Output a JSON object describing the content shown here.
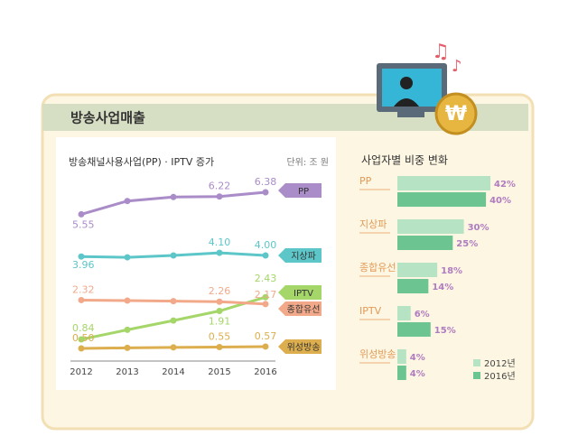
{
  "header": {
    "title": "방송사업매출"
  },
  "chart_data": [
    {
      "type": "line",
      "title": "방송채널사용사업(PP) · IPTV 증가",
      "unit": "단위: 조 원",
      "x": [
        2012,
        2013,
        2014,
        2015,
        2016
      ],
      "series": [
        {
          "name": "PP",
          "color": "#a98cc8",
          "values": [
            5.55,
            6.05,
            6.2,
            6.22,
            6.38
          ],
          "value_labels": [
            "5.55",
            null,
            null,
            "6.22",
            "6.38"
          ]
        },
        {
          "name": "지상파",
          "color": "#5cc6c8",
          "values": [
            3.96,
            3.93,
            4.0,
            4.1,
            4.0
          ],
          "value_labels": [
            "3.96",
            null,
            null,
            "4.10",
            "4.00"
          ]
        },
        {
          "name": "IPTV",
          "color": "#a5d66a",
          "values": [
            0.84,
            1.2,
            1.55,
            1.91,
            2.43
          ],
          "value_labels": [
            "0.84",
            null,
            null,
            "1.91",
            "2.43"
          ]
        },
        {
          "name": "종합유선",
          "color": "#f2a98a",
          "values": [
            2.32,
            2.3,
            2.28,
            2.26,
            2.17
          ],
          "value_labels": [
            "2.32",
            null,
            null,
            "2.26",
            "2.17"
          ]
        },
        {
          "name": "위성방송",
          "color": "#dcae4e",
          "values": [
            0.5,
            0.52,
            0.54,
            0.55,
            0.57
          ],
          "value_labels": [
            "0.50",
            null,
            null,
            "0.55",
            "0.57"
          ]
        }
      ]
    },
    {
      "type": "bar",
      "title": "사업자별 비중 변화",
      "categories": [
        "PP",
        "지상파",
        "종합유선",
        "IPTV",
        "위성방송"
      ],
      "series": [
        {
          "name": "2012년",
          "color": "#b6e3c4",
          "values": [
            42,
            30,
            18,
            6,
            4
          ],
          "value_labels": [
            "42%",
            "30%",
            "18%",
            "6%",
            "4%"
          ]
        },
        {
          "name": "2016년",
          "color": "#6cc490",
          "values": [
            40,
            25,
            14,
            15,
            4
          ],
          "value_labels": [
            "40%",
            "25%",
            "14%",
            "15%",
            "4%"
          ]
        }
      ]
    }
  ]
}
